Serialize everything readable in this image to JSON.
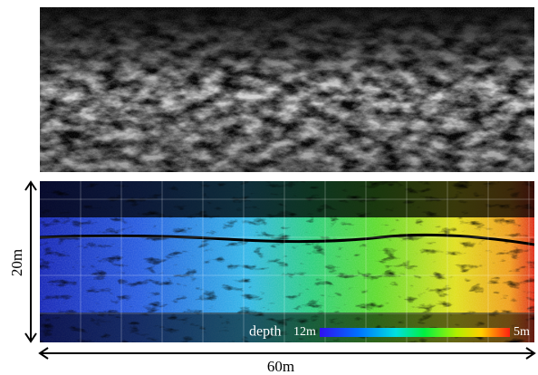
{
  "figure": {
    "height_label": "20m",
    "width_label": "60m",
    "colorbar": {
      "title": "depth",
      "min_label": "12m",
      "max_label": "5m"
    }
  }
}
